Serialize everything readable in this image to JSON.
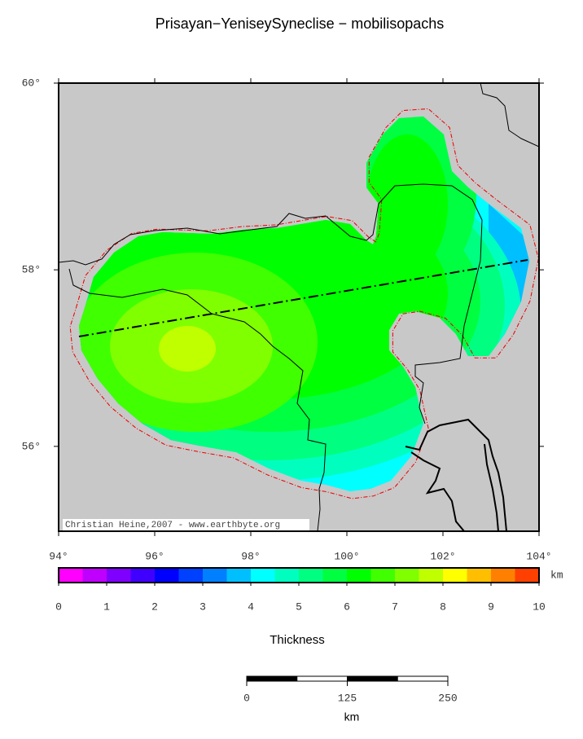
{
  "map": {
    "title": "Prisayan−YeniseySyneclise − mobilisopachs",
    "credit": "Christian Heine,2007 - www.earthbyte.org",
    "xlim": [
      94,
      104
    ],
    "ylim": [
      55,
      60
    ],
    "xticks": [
      {
        "value": 94,
        "label": "94°"
      },
      {
        "value": 96,
        "label": "96°"
      },
      {
        "value": 98,
        "label": "98°"
      },
      {
        "value": 100,
        "label": "100°"
      },
      {
        "value": 102,
        "label": "102°"
      },
      {
        "value": 104,
        "label": "104°"
      }
    ],
    "yticks": [
      {
        "value": 56,
        "label": "56°"
      },
      {
        "value": 58,
        "label": "58°"
      },
      {
        "value": 60,
        "label": "60°"
      }
    ]
  },
  "colorbar": {
    "label": "Thickness",
    "unit": "km",
    "bins": [
      0,
      0.5,
      1,
      1.5,
      2,
      2.5,
      3,
      3.5,
      4,
      4.5,
      5,
      5.5,
      6,
      6.5,
      7,
      7.5,
      8,
      8.5,
      9,
      9.5,
      10
    ],
    "colors": [
      "#ff00ff",
      "#bf00ff",
      "#8000ff",
      "#4000ff",
      "#0000ff",
      "#0040ff",
      "#0080ff",
      "#00bfff",
      "#00ffff",
      "#00ffbf",
      "#00ff80",
      "#00ff40",
      "#00ff00",
      "#40ff00",
      "#80ff00",
      "#bfff00",
      "#ffff00",
      "#ffbf00",
      "#ff8000",
      "#ff4000"
    ],
    "ticks": [
      0,
      1,
      2,
      3,
      4,
      5,
      6,
      7,
      8,
      9,
      10
    ]
  },
  "scalebar": {
    "unit": "km",
    "lim": [
      0,
      250
    ],
    "ticks": [
      0,
      125,
      250
    ]
  }
}
